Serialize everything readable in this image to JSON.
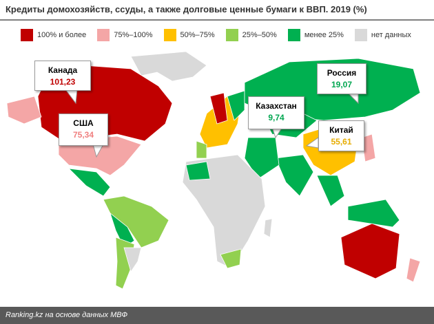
{
  "title": "Кредиты домохозяйств, ссуды, а также долговые ценные бумаги к ВВП. 2019  (%)",
  "legend": [
    {
      "label": "100% и более",
      "color": "#c00000"
    },
    {
      "label": "75%–100%",
      "color": "#f4a6a6"
    },
    {
      "label": "50%–75%",
      "color": "#ffc000"
    },
    {
      "label": "25%–50%",
      "color": "#92d050"
    },
    {
      "label": "менее 25%",
      "color": "#00b050"
    },
    {
      "label": "нет данных",
      "color": "#d9d9d9"
    }
  ],
  "callouts": [
    {
      "country": "Канада",
      "value": "101,23",
      "color": "#c00000"
    },
    {
      "country": "США",
      "value": "75,34",
      "color": "#f08080"
    },
    {
      "country": "Казахстан",
      "value": "9,74",
      "color": "#00a650"
    },
    {
      "country": "Россия",
      "value": "19,07",
      "color": "#00a650"
    },
    {
      "country": "Китай",
      "value": "55,61",
      "color": "#e6ac00"
    }
  ],
  "footer": "Ranking.kz на основе данных МВФ"
}
